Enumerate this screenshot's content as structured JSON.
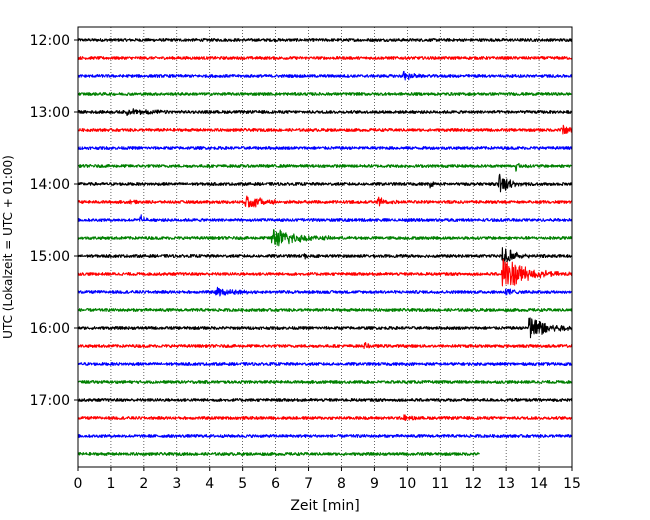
{
  "chart_data": {
    "type": "line",
    "title": "",
    "xlabel": "Zeit  [min]",
    "ylabel": "UTC (Lokalzeit = UTC + 01:00)",
    "xlim": [
      0,
      15
    ],
    "x_ticks": [
      0,
      1,
      2,
      3,
      4,
      5,
      6,
      7,
      8,
      9,
      10,
      11,
      12,
      13,
      14,
      15
    ],
    "y_tick_labels": [
      "12:00",
      "13:00",
      "14:00",
      "15:00",
      "16:00",
      "17:00"
    ],
    "grid": "vertical dotted lines at each minute",
    "legend": "none",
    "colors": [
      "#000000",
      "#ff0000",
      "#0000ff",
      "#008000"
    ],
    "noise_amplitude": 0.18,
    "series": [
      {
        "start": "12:00",
        "color": "#000000",
        "end_min": 15,
        "events": []
      },
      {
        "start": "12:15",
        "color": "#ff0000",
        "end_min": 15,
        "events": []
      },
      {
        "start": "12:30",
        "color": "#0000ff",
        "end_min": 15,
        "events": [
          {
            "t": 9.9,
            "amp": 0.75,
            "width": 0.2
          }
        ]
      },
      {
        "start": "12:45",
        "color": "#008000",
        "end_min": 15,
        "events": []
      },
      {
        "start": "13:00",
        "color": "#000000",
        "end_min": 15,
        "events": [
          {
            "t": 1.5,
            "amp": 0.45,
            "width": 0.6
          }
        ]
      },
      {
        "start": "13:15",
        "color": "#ff0000",
        "end_min": 15,
        "events": [
          {
            "t": 14.7,
            "amp": 0.7,
            "width": 0.3
          }
        ]
      },
      {
        "start": "13:30",
        "color": "#0000ff",
        "end_min": 15,
        "events": []
      },
      {
        "start": "13:45",
        "color": "#008000",
        "end_min": 15,
        "events": [
          {
            "t": 13.3,
            "amp": 0.6,
            "width": 0.15
          }
        ]
      },
      {
        "start": "14:00",
        "color": "#000000",
        "end_min": 15,
        "events": [
          {
            "t": 10.7,
            "amp": 0.4,
            "width": 0.1
          },
          {
            "t": 12.8,
            "amp": 1.2,
            "width": 0.3
          }
        ]
      },
      {
        "start": "14:15",
        "color": "#ff0000",
        "end_min": 15,
        "events": [
          {
            "t": 1.6,
            "amp": 0.3,
            "width": 0.1
          },
          {
            "t": 5.1,
            "amp": 0.95,
            "width": 0.5
          },
          {
            "t": 9.1,
            "amp": 0.8,
            "width": 0.2
          }
        ]
      },
      {
        "start": "14:30",
        "color": "#0000ff",
        "end_min": 15,
        "events": [
          {
            "t": 1.9,
            "amp": 0.6,
            "width": 0.1
          },
          {
            "t": 4.6,
            "amp": 0.3,
            "width": 0.1
          }
        ]
      },
      {
        "start": "14:45",
        "color": "#008000",
        "end_min": 15,
        "events": [
          {
            "t": 5.9,
            "amp": 1.3,
            "width": 0.7
          }
        ]
      },
      {
        "start": "15:00",
        "color": "#000000",
        "end_min": 15,
        "events": [
          {
            "t": 6.9,
            "amp": 0.3,
            "width": 0.1
          },
          {
            "t": 12.9,
            "amp": 1.4,
            "width": 0.3
          }
        ]
      },
      {
        "start": "15:15",
        "color": "#ff0000",
        "end_min": 15,
        "events": [
          {
            "t": 12.9,
            "amp": 2.5,
            "width": 0.6
          }
        ]
      },
      {
        "start": "15:30",
        "color": "#0000ff",
        "end_min": 15,
        "events": [
          {
            "t": 4.2,
            "amp": 0.6,
            "width": 0.5
          },
          {
            "t": 13.0,
            "amp": 0.5,
            "width": 0.2
          }
        ]
      },
      {
        "start": "15:45",
        "color": "#008000",
        "end_min": 15,
        "events": []
      },
      {
        "start": "16:00",
        "color": "#000000",
        "end_min": 15,
        "events": [
          {
            "t": 13.7,
            "amp": 1.65,
            "width": 0.6
          }
        ]
      },
      {
        "start": "16:15",
        "color": "#ff0000",
        "end_min": 15,
        "events": [
          {
            "t": 8.7,
            "amp": 0.45,
            "width": 0.1
          }
        ]
      },
      {
        "start": "16:30",
        "color": "#0000ff",
        "end_min": 15,
        "events": []
      },
      {
        "start": "16:45",
        "color": "#008000",
        "end_min": 15,
        "events": []
      },
      {
        "start": "17:00",
        "color": "#000000",
        "end_min": 15,
        "events": []
      },
      {
        "start": "17:15",
        "color": "#ff0000",
        "end_min": 15,
        "events": [
          {
            "t": 9.9,
            "amp": 0.4,
            "width": 0.2
          }
        ]
      },
      {
        "start": "17:30",
        "color": "#0000ff",
        "end_min": 15,
        "events": []
      },
      {
        "start": "17:45",
        "color": "#008000",
        "end_min": 12.2,
        "events": []
      }
    ]
  }
}
